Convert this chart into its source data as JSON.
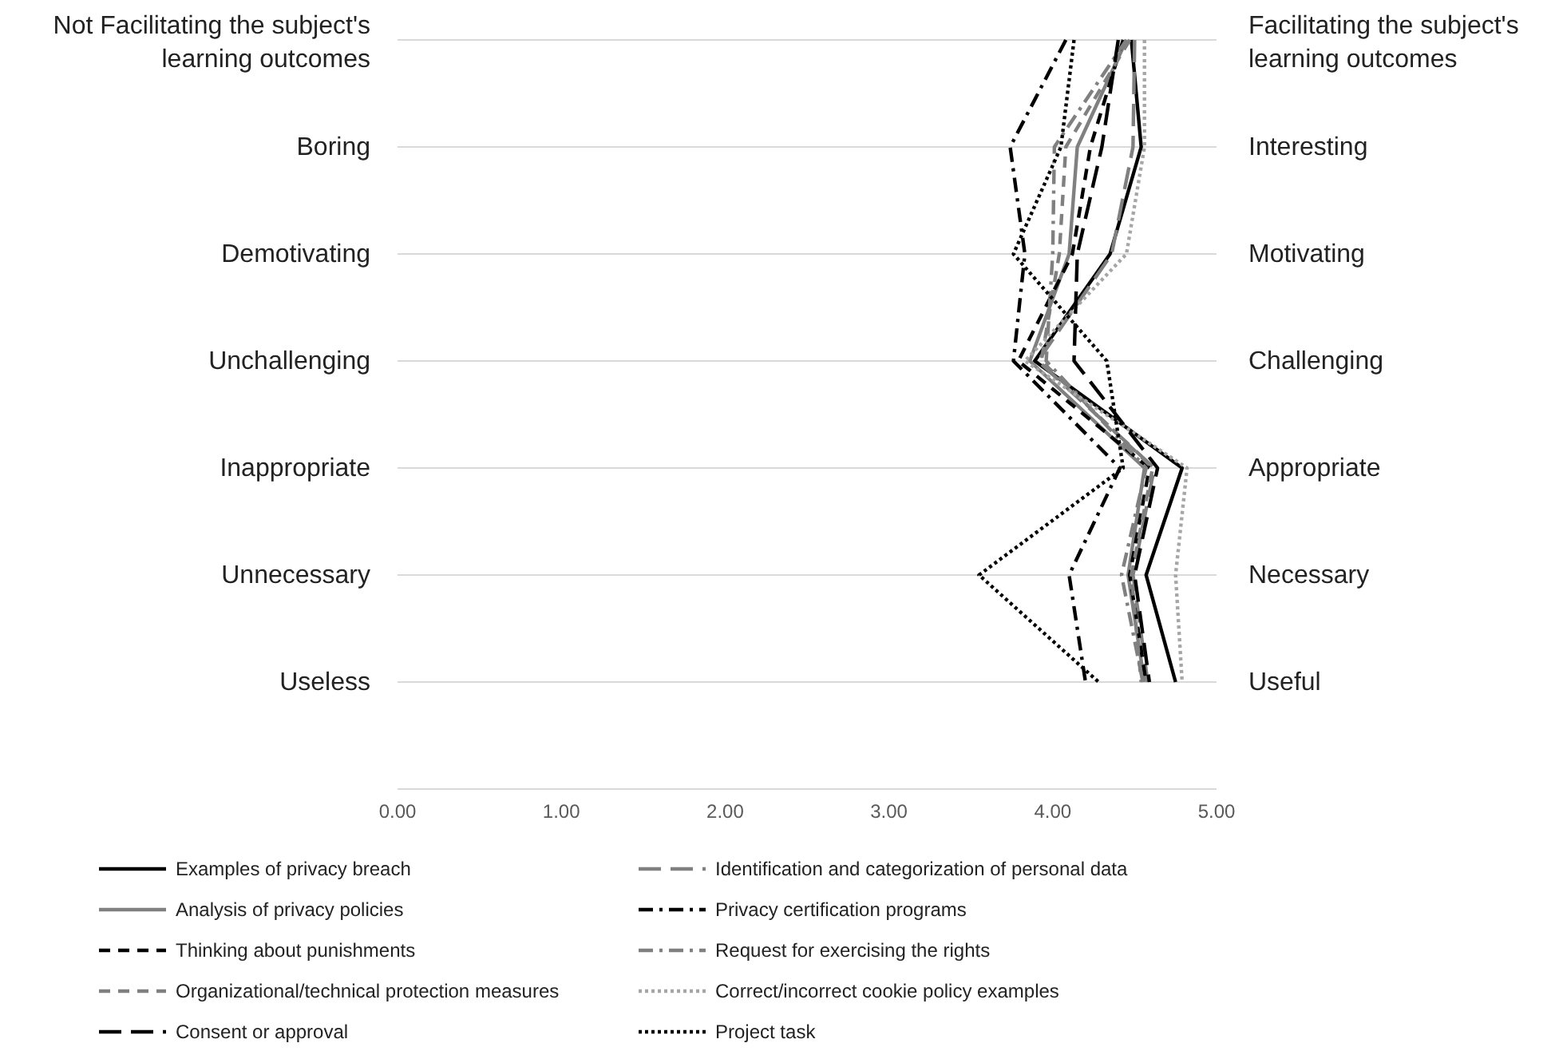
{
  "chart_data": {
    "type": "line",
    "orientation": "horizontal",
    "categories": [
      "Not Facilitating the subject's learning outcomes",
      "Boring",
      "Demotivating",
      "Unchallenging",
      "Inappropriate",
      "Unnecessary",
      "Useless"
    ],
    "y2_categories": [
      "Facilitating the subject's learning outcomes",
      "Interesting",
      "Motivating",
      "Challenging",
      "Appropriate",
      "Necessary",
      "Useful"
    ],
    "xlim": [
      0,
      5
    ],
    "xticks": [
      {
        "value": 0,
        "label": "0.00"
      },
      {
        "value": 1,
        "label": "1.00"
      },
      {
        "value": 2,
        "label": "2.00"
      },
      {
        "value": 3,
        "label": "3.00"
      },
      {
        "value": 4,
        "label": "4.00"
      },
      {
        "value": 5,
        "label": "5.00"
      }
    ],
    "grid": "y",
    "legend": "bottom",
    "marker": "none",
    "series": [
      {
        "name": "Examples of privacy breach",
        "color": "#000000",
        "line_style": "solid",
        "values": [
          4.48,
          4.54,
          4.35,
          3.89,
          4.79,
          4.57,
          4.75
        ]
      },
      {
        "name": "Identification and categorization of personal data",
        "color": "#808080",
        "line_style": "longdash",
        "values": [
          4.5,
          4.49,
          4.36,
          3.91,
          4.62,
          4.49,
          4.58
        ]
      },
      {
        "name": "Analysis of privacy policies",
        "color": "#808080",
        "line_style": "solid",
        "values": [
          4.45,
          4.15,
          4.1,
          3.86,
          4.56,
          4.46,
          4.56
        ]
      },
      {
        "name": "Privacy certification programs",
        "color": "#000000",
        "line_style": "dashdot",
        "values": [
          4.08,
          3.74,
          3.83,
          3.76,
          4.41,
          4.1,
          4.2
        ]
      },
      {
        "name": "Thinking about punishments",
        "color": "#000000",
        "line_style": "dashed",
        "values": [
          4.43,
          4.23,
          4.12,
          3.79,
          4.59,
          4.47,
          4.57
        ]
      },
      {
        "name": "Request for exercising the rights",
        "color": "#808080",
        "line_style": "dashdot",
        "values": [
          4.45,
          4.01,
          4.0,
          3.96,
          4.57,
          4.42,
          4.55
        ]
      },
      {
        "name": "Organizational/technical protection measures",
        "color": "#808080",
        "line_style": "dashed",
        "values": [
          4.47,
          4.08,
          4.04,
          3.93,
          4.61,
          4.48,
          4.54
        ]
      },
      {
        "name": "Correct/incorrect cookie policy examples",
        "color": "#a6a6a6",
        "line_style": "dotted",
        "values": [
          4.56,
          4.56,
          4.45,
          3.83,
          4.82,
          4.75,
          4.79
        ]
      },
      {
        "name": "Consent or approval",
        "color": "#000000",
        "line_style": "longdash",
        "values": [
          4.4,
          4.3,
          4.15,
          4.13,
          4.64,
          4.5,
          4.59
        ]
      },
      {
        "name": "Project task",
        "color": "#000000",
        "line_style": "dotted",
        "values": [
          4.13,
          4.05,
          3.76,
          4.33,
          4.43,
          3.55,
          4.28
        ]
      }
    ]
  }
}
